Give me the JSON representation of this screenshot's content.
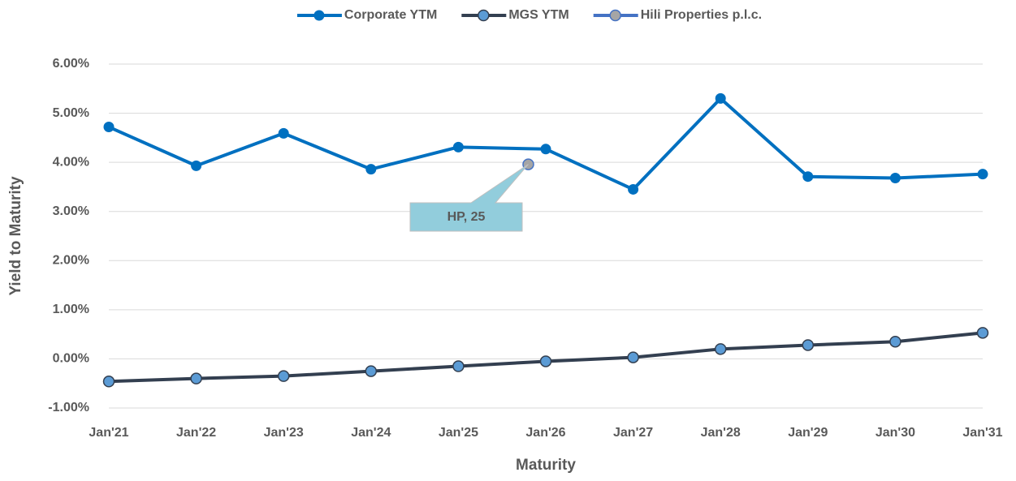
{
  "chart_data": {
    "type": "line",
    "x_label": "Maturity",
    "y_label": "Yield to Maturity",
    "annotation": "HP, 25",
    "xlim": [
      2021,
      2031
    ],
    "xticks": [
      {
        "value": 2021,
        "label": "Jan'21"
      },
      {
        "value": 2022,
        "label": "Jan'22"
      },
      {
        "value": 2023,
        "label": "Jan'23"
      },
      {
        "value": 2024,
        "label": "Jan'24"
      },
      {
        "value": 2025,
        "label": "Jan'25"
      },
      {
        "value": 2026,
        "label": "Jan'26"
      },
      {
        "value": 2027,
        "label": "Jan'27"
      },
      {
        "value": 2028,
        "label": "Jan'28"
      },
      {
        "value": 2029,
        "label": "Jan'29"
      },
      {
        "value": 2030,
        "label": "Jan'30"
      },
      {
        "value": 2031,
        "label": "Jan'31"
      }
    ],
    "ylim": [
      -1,
      6
    ],
    "yticks": [
      {
        "value": -1,
        "label": "-1.00%"
      },
      {
        "value": 0,
        "label": "0.00%"
      },
      {
        "value": 1,
        "label": "1.00%"
      },
      {
        "value": 2,
        "label": "2.00%"
      },
      {
        "value": 3,
        "label": "3.00%"
      },
      {
        "value": 4,
        "label": "4.00%"
      },
      {
        "value": 5,
        "label": "5.00%"
      },
      {
        "value": 6,
        "label": "6.00%"
      }
    ],
    "grid": true,
    "legend": "top",
    "series": [
      {
        "name": "Corporate YTM",
        "color": "#0070c0",
        "marker_color": "#0070c0",
        "x": [
          2021,
          2022,
          2023,
          2024,
          2025,
          2026,
          2027,
          2028,
          2029,
          2030,
          2031
        ],
        "values": [
          4.72,
          3.93,
          4.59,
          3.86,
          4.31,
          4.27,
          3.45,
          5.3,
          3.71,
          3.68,
          3.76
        ]
      },
      {
        "name": "MGS YTM",
        "color": "#333f50",
        "marker_color": "#5b9bd5",
        "x": [
          2021,
          2022,
          2023,
          2024,
          2025,
          2026,
          2027,
          2028,
          2029,
          2030,
          2031
        ],
        "values": [
          -0.46,
          -0.4,
          -0.35,
          -0.25,
          -0.15,
          -0.05,
          0.03,
          0.2,
          0.28,
          0.35,
          0.53
        ]
      },
      {
        "name": "Hili Properties p.l.c.",
        "color": "#4472c4",
        "marker_color": "#a5a5a5",
        "x": [
          2025.8
        ],
        "values": [
          3.96
        ]
      }
    ]
  }
}
